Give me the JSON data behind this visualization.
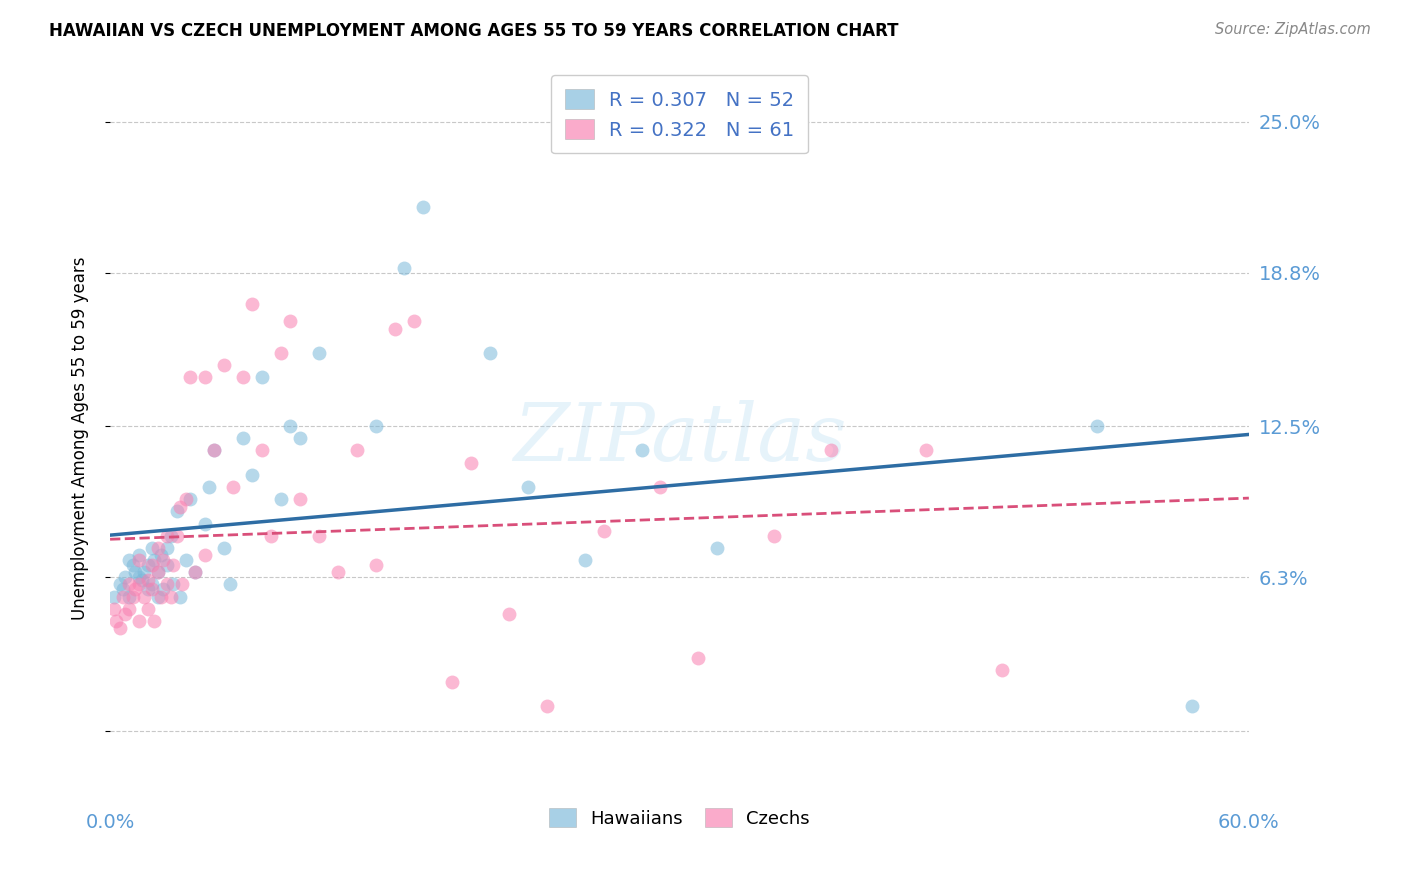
{
  "title": "HAWAIIAN VS CZECH UNEMPLOYMENT AMONG AGES 55 TO 59 YEARS CORRELATION CHART",
  "source": "Source: ZipAtlas.com",
  "ylabel": "Unemployment Among Ages 55 to 59 years",
  "xlim": [
    0.0,
    0.6
  ],
  "ylim": [
    -0.03,
    0.27
  ],
  "ytick_vals": [
    0.0,
    0.063,
    0.125,
    0.188,
    0.25
  ],
  "ytick_labels": [
    "",
    "6.3%",
    "12.5%",
    "18.8%",
    "25.0%"
  ],
  "xtick_vals": [
    0.0,
    0.12,
    0.24,
    0.36,
    0.48,
    0.6
  ],
  "xtick_labels": [
    "0.0%",
    "",
    "",
    "",
    "",
    "60.0%"
  ],
  "watermark_text": "ZIPatlas",
  "legend_h_label": "R = 0.307   N = 52",
  "legend_c_label": "R = 0.322   N = 61",
  "hawaiian_color": "#7ab8d9",
  "czech_color": "#f87fb0",
  "trend_h_color": "#2e6da4",
  "trend_c_color": "#d94f7a",
  "background_color": "#ffffff",
  "grid_color": "#c8c8c8",
  "tick_label_color": "#5b9bd5",
  "hawaiian_x": [
    0.002,
    0.005,
    0.007,
    0.008,
    0.01,
    0.01,
    0.012,
    0.013,
    0.015,
    0.015,
    0.017,
    0.018,
    0.02,
    0.02,
    0.022,
    0.022,
    0.023,
    0.025,
    0.025,
    0.027,
    0.028,
    0.03,
    0.03,
    0.032,
    0.033,
    0.035,
    0.037,
    0.04,
    0.042,
    0.045,
    0.05,
    0.052,
    0.055,
    0.06,
    0.063,
    0.07,
    0.075,
    0.08,
    0.09,
    0.095,
    0.1,
    0.11,
    0.14,
    0.155,
    0.165,
    0.2,
    0.22,
    0.25,
    0.28,
    0.32,
    0.52,
    0.57
  ],
  "hawaiian_y": [
    0.055,
    0.06,
    0.058,
    0.063,
    0.055,
    0.07,
    0.068,
    0.065,
    0.063,
    0.072,
    0.062,
    0.065,
    0.058,
    0.068,
    0.06,
    0.075,
    0.07,
    0.055,
    0.065,
    0.072,
    0.058,
    0.068,
    0.075,
    0.08,
    0.06,
    0.09,
    0.055,
    0.07,
    0.095,
    0.065,
    0.085,
    0.1,
    0.115,
    0.075,
    0.06,
    0.12,
    0.105,
    0.145,
    0.095,
    0.125,
    0.12,
    0.155,
    0.125,
    0.19,
    0.215,
    0.155,
    0.1,
    0.07,
    0.115,
    0.075,
    0.125,
    0.01
  ],
  "czech_x": [
    0.002,
    0.003,
    0.005,
    0.007,
    0.008,
    0.01,
    0.01,
    0.012,
    0.013,
    0.015,
    0.015,
    0.015,
    0.018,
    0.02,
    0.02,
    0.022,
    0.022,
    0.023,
    0.025,
    0.025,
    0.027,
    0.028,
    0.03,
    0.03,
    0.032,
    0.033,
    0.035,
    0.037,
    0.038,
    0.04,
    0.042,
    0.045,
    0.05,
    0.05,
    0.055,
    0.06,
    0.065,
    0.07,
    0.075,
    0.08,
    0.085,
    0.09,
    0.095,
    0.1,
    0.11,
    0.12,
    0.13,
    0.14,
    0.15,
    0.16,
    0.18,
    0.19,
    0.21,
    0.23,
    0.26,
    0.29,
    0.31,
    0.35,
    0.38,
    0.43,
    0.47
  ],
  "czech_y": [
    0.05,
    0.045,
    0.042,
    0.055,
    0.048,
    0.06,
    0.05,
    0.055,
    0.058,
    0.045,
    0.06,
    0.07,
    0.055,
    0.062,
    0.05,
    0.068,
    0.058,
    0.045,
    0.065,
    0.075,
    0.055,
    0.07,
    0.06,
    0.08,
    0.055,
    0.068,
    0.08,
    0.092,
    0.06,
    0.095,
    0.145,
    0.065,
    0.072,
    0.145,
    0.115,
    0.15,
    0.1,
    0.145,
    0.175,
    0.115,
    0.08,
    0.155,
    0.168,
    0.095,
    0.08,
    0.065,
    0.115,
    0.068,
    0.165,
    0.168,
    0.02,
    0.11,
    0.048,
    0.01,
    0.082,
    0.1,
    0.03,
    0.08,
    0.115,
    0.115,
    0.025
  ]
}
